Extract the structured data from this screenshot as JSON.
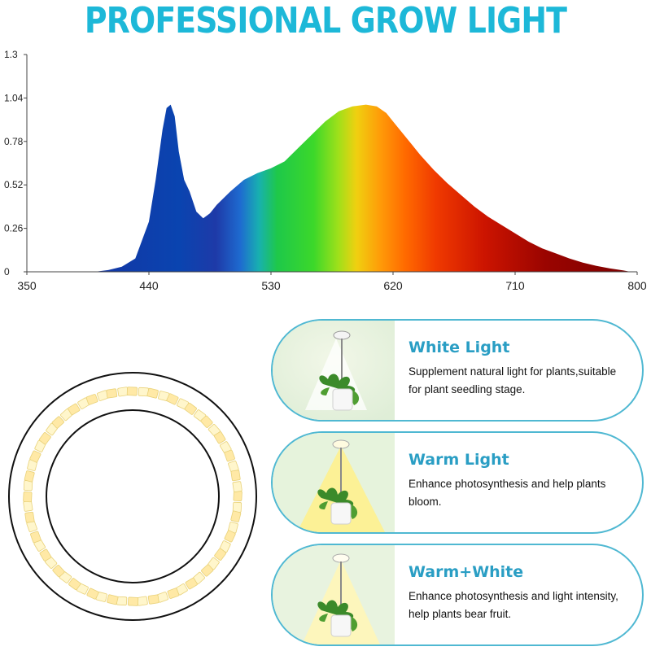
{
  "title": "PROFESSIONAL GROW LIGHT",
  "chart_data": {
    "type": "area",
    "title": "PROFESSIONAL GROW LIGHT",
    "xlabel": "",
    "ylabel": "",
    "xlim": [
      350,
      800
    ],
    "ylim": [
      0,
      1.3
    ],
    "x_ticks": [
      350,
      440,
      530,
      620,
      710,
      800
    ],
    "y_ticks": [
      0,
      0.26,
      0.52,
      0.78,
      1.04,
      1.3
    ],
    "y_tick_labels": [
      "0",
      "0.26",
      "0.52",
      "0.78",
      "1.04",
      "1.3"
    ],
    "grid": false,
    "series": [
      {
        "x": [
          400,
          410,
          420,
          430,
          440,
          445,
          450,
          453,
          456,
          459,
          462,
          466,
          470,
          475,
          480,
          485,
          490,
          500,
          510,
          520,
          530,
          540,
          550,
          560,
          570,
          580,
          590,
          600,
          608,
          615,
          620,
          630,
          640,
          650,
          660,
          670,
          680,
          690,
          700,
          710,
          720,
          730,
          740,
          750,
          760,
          770,
          780,
          790,
          795
        ],
        "y": [
          0.0,
          0.01,
          0.03,
          0.08,
          0.3,
          0.55,
          0.85,
          0.98,
          1.0,
          0.93,
          0.72,
          0.55,
          0.48,
          0.36,
          0.32,
          0.35,
          0.4,
          0.48,
          0.55,
          0.59,
          0.62,
          0.66,
          0.74,
          0.82,
          0.9,
          0.96,
          0.99,
          1.0,
          0.99,
          0.95,
          0.9,
          0.8,
          0.7,
          0.61,
          0.53,
          0.46,
          0.39,
          0.33,
          0.28,
          0.23,
          0.18,
          0.14,
          0.11,
          0.08,
          0.055,
          0.035,
          0.02,
          0.008,
          0.0
        ]
      }
    ]
  },
  "colors": {
    "title": "#1db8d8",
    "card_border": "#4fb8d2",
    "card_heading": "#2a9ec4"
  },
  "cards": [
    {
      "heading": "White Light",
      "line1": "Supplement natural light for plants,suitable",
      "line2": "for plant seedling stage.",
      "light": "white"
    },
    {
      "heading": "Warm Light",
      "line1": "Enhance photosynthesis and help plants",
      "line2": "bloom.",
      "light": "warm"
    },
    {
      "heading": "Warm+White",
      "line1": "Enhance photosynthesis and light intensity,",
      "line2": "help plants bear fruit.",
      "light": "warm+white"
    }
  ]
}
